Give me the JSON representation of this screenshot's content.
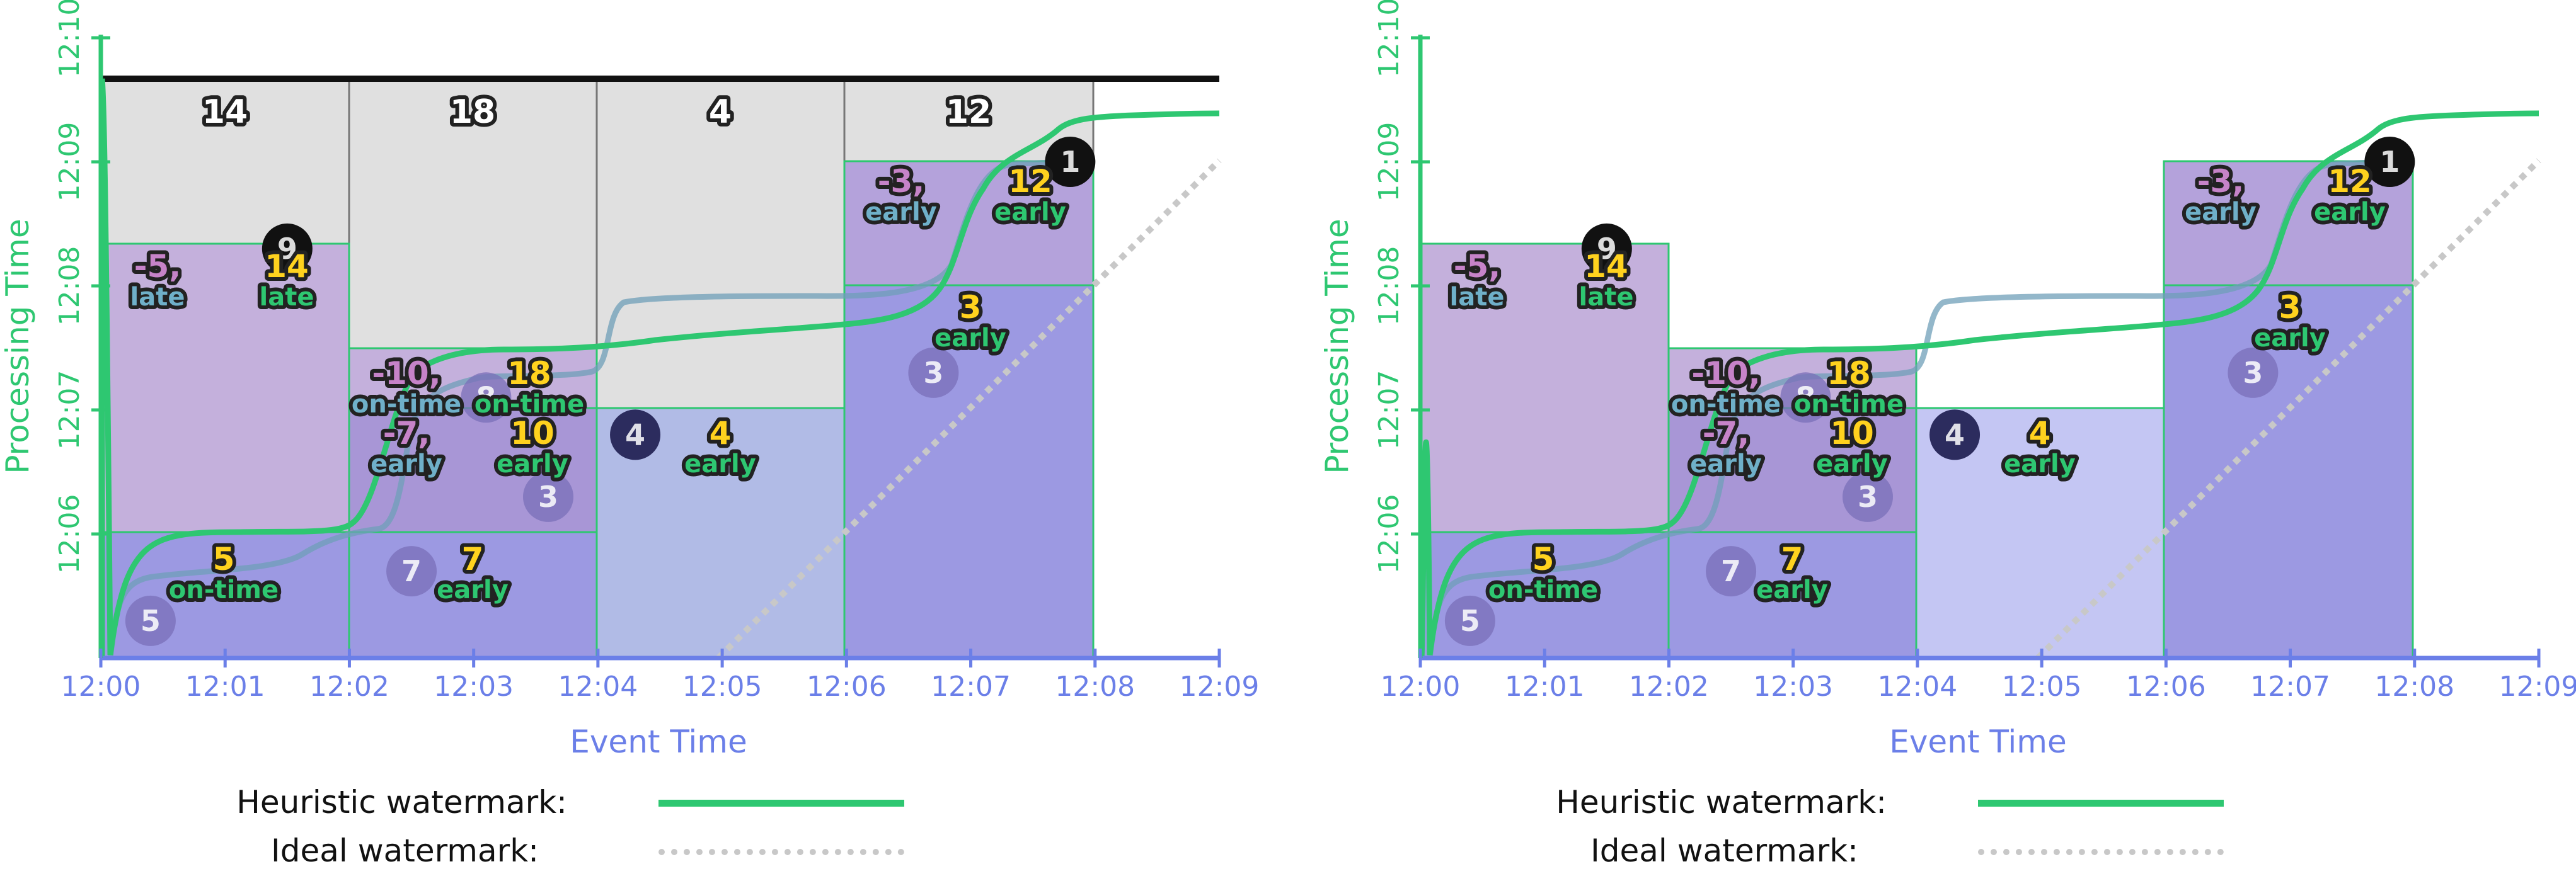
{
  "x_axis": {
    "label": "Event Time",
    "ticks": [
      "12:00",
      "12:01",
      "12:02",
      "12:03",
      "12:04",
      "12:05",
      "12:06",
      "12:07",
      "12:08",
      "12:09"
    ]
  },
  "y_axis": {
    "label": "Processing Time",
    "ticks": [
      "12:06",
      "12:07",
      "12:08",
      "12:09",
      "12:10"
    ]
  },
  "legend": {
    "heuristic": "Heuristic watermark:",
    "ideal": "Ideal watermark:"
  },
  "colors": {
    "watermark": "#2ec771",
    "axis_x": "#6b7fe8",
    "axis_y": "#2ec771",
    "grey_pane": "#e0e0e0",
    "light_purple": "#c4b0dc",
    "mid_purple": "#a896d6",
    "blue_purple": "#9c99e2",
    "light_blue": "#c4c6f3",
    "label_yellow": "#ffd21e",
    "label_green": "#2ec771",
    "label_pink": "#c683c8",
    "label_teal": "#6fb0c9",
    "dark_circle": "#2c2c5e"
  },
  "panels": [
    {
      "id": "left",
      "top_totals": [
        "14",
        "18",
        "4",
        "12"
      ],
      "pane_labels": [
        {
          "value": "-5,",
          "tag": "late",
          "style": "retract"
        },
        {
          "value": "14",
          "tag": "late",
          "style": "fire"
        },
        {
          "value": "-10,",
          "tag": "on-time",
          "style": "retract"
        },
        {
          "value": "18",
          "tag": "on-time",
          "style": "fire"
        },
        {
          "value": "-7,",
          "tag": "early",
          "style": "retract"
        },
        {
          "value": "10",
          "tag": "early",
          "style": "fire"
        },
        {
          "value": "5",
          "tag": "on-time",
          "style": "fire"
        },
        {
          "value": "7",
          "tag": "early",
          "style": "fire"
        },
        {
          "value": "4",
          "tag": "early",
          "style": "fire"
        },
        {
          "value": "-3,",
          "tag": "early",
          "style": "retract"
        },
        {
          "value": "12",
          "tag": "early",
          "style": "fire"
        },
        {
          "value": "3",
          "tag": "early",
          "style": "fire"
        }
      ],
      "data_points": [
        {
          "value": "9",
          "event_time": "12:01.5",
          "processing_time": "12:08.3"
        },
        {
          "value": "8",
          "event_time": "12:03.1",
          "processing_time": "12:07.1"
        },
        {
          "value": "3",
          "event_time": "12:03.6",
          "processing_time": "12:06.3"
        },
        {
          "value": "7",
          "event_time": "12:02.5",
          "processing_time": "12:05.7"
        },
        {
          "value": "5",
          "event_time": "12:00.4",
          "processing_time": "12:05.3"
        },
        {
          "value": "4",
          "event_time": "12:04.3",
          "processing_time": "12:06.8"
        },
        {
          "value": "3",
          "event_time": "12:06.7",
          "processing_time": "12:07.3"
        },
        {
          "value": "1",
          "event_time": "12:07.8",
          "processing_time": "12:09.0"
        }
      ]
    },
    {
      "id": "right",
      "top_totals": [],
      "pane_labels": [
        {
          "value": "-5,",
          "tag": "late",
          "style": "retract"
        },
        {
          "value": "14",
          "tag": "late",
          "style": "fire"
        },
        {
          "value": "-10,",
          "tag": "on-time",
          "style": "retract"
        },
        {
          "value": "18",
          "tag": "on-time",
          "style": "fire"
        },
        {
          "value": "-7,",
          "tag": "early",
          "style": "retract"
        },
        {
          "value": "10",
          "tag": "early",
          "style": "fire"
        },
        {
          "value": "5",
          "tag": "on-time",
          "style": "fire"
        },
        {
          "value": "7",
          "tag": "early",
          "style": "fire"
        },
        {
          "value": "4",
          "tag": "early",
          "style": "fire"
        },
        {
          "value": "-3,",
          "tag": "early",
          "style": "retract"
        },
        {
          "value": "12",
          "tag": "early",
          "style": "fire"
        },
        {
          "value": "3",
          "tag": "early",
          "style": "fire"
        }
      ],
      "data_points": [
        {
          "value": "9",
          "event_time": "12:01.5",
          "processing_time": "12:08.3"
        },
        {
          "value": "8",
          "event_time": "12:03.1",
          "processing_time": "12:07.1"
        },
        {
          "value": "3",
          "event_time": "12:03.6",
          "processing_time": "12:06.3"
        },
        {
          "value": "7",
          "event_time": "12:02.5",
          "processing_time": "12:05.7"
        },
        {
          "value": "5",
          "event_time": "12:00.4",
          "processing_time": "12:05.3"
        },
        {
          "value": "4",
          "event_time": "12:04.3",
          "processing_time": "12:06.8"
        },
        {
          "value": "3",
          "event_time": "12:06.7",
          "processing_time": "12:07.3"
        },
        {
          "value": "1",
          "event_time": "12:07.8",
          "processing_time": "12:09.0"
        }
      ]
    }
  ]
}
